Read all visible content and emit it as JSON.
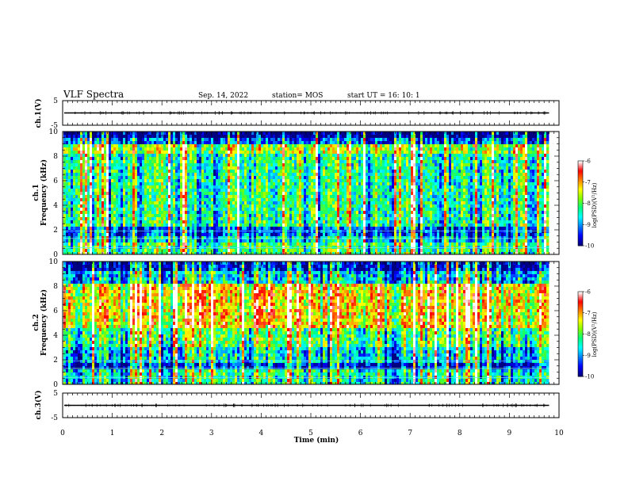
{
  "header": {
    "title": "VLF Spectra",
    "date": "Sep. 14, 2022",
    "station": "station= MOS",
    "start_ut": "start  UT =   16: 10: 1"
  },
  "colors": {
    "cmap": [
      "#000080",
      "#0000ff",
      "#0080ff",
      "#00ffff",
      "#00ff80",
      "#80ff00",
      "#ffff00",
      "#ff8000",
      "#ff0000",
      "#ffffff"
    ]
  },
  "chart_data": [
    {
      "type": "line",
      "name": "ch1-waveform",
      "ylabel": "ch.1(V)",
      "ylim": [
        -5,
        5
      ],
      "y_ticks": [
        "5",
        "-5"
      ],
      "x_range": [
        0,
        10
      ],
      "baseline_value": 0
    },
    {
      "type": "heatmap",
      "name": "ch1-spectrogram",
      "ylabel_line1": "ch.1",
      "ylabel_line2": "Frequency (kHz)",
      "ylim": [
        0,
        10
      ],
      "y_ticks": [
        "0",
        "2",
        "4",
        "6",
        "8",
        "10"
      ],
      "x_range": [
        0,
        10
      ],
      "data_end_min": 9.8,
      "colorbar": {
        "label": "log(PSD)(V²/Hz)",
        "range": [
          -10,
          -6
        ],
        "ticks": [
          "-6",
          "-7",
          "-8",
          "-9",
          "-10"
        ]
      }
    },
    {
      "type": "heatmap",
      "name": "ch2-spectrogram",
      "ylabel_line1": "ch.2",
      "ylabel_line2": "Frequency (kHz)",
      "ylim": [
        0,
        10
      ],
      "y_ticks": [
        "0",
        "2",
        "4",
        "6",
        "8",
        "10"
      ],
      "x_range": [
        0,
        10
      ],
      "data_end_min": 9.8,
      "colorbar": {
        "label": "log(PSD)(V²/Hz)",
        "range": [
          -10,
          -6
        ],
        "ticks": [
          "-6",
          "-7",
          "-8",
          "-9",
          "-10"
        ]
      }
    },
    {
      "type": "line",
      "name": "ch3-waveform",
      "ylabel": "ch.3(V)",
      "ylim": [
        -5,
        5
      ],
      "y_ticks": [
        "5",
        "-5"
      ],
      "x_range": [
        0,
        10
      ],
      "xlabel": "Time (min)",
      "x_ticks": [
        "0",
        "1",
        "2",
        "3",
        "4",
        "5",
        "6",
        "7",
        "8",
        "9",
        "10"
      ],
      "baseline_value": 0
    }
  ]
}
